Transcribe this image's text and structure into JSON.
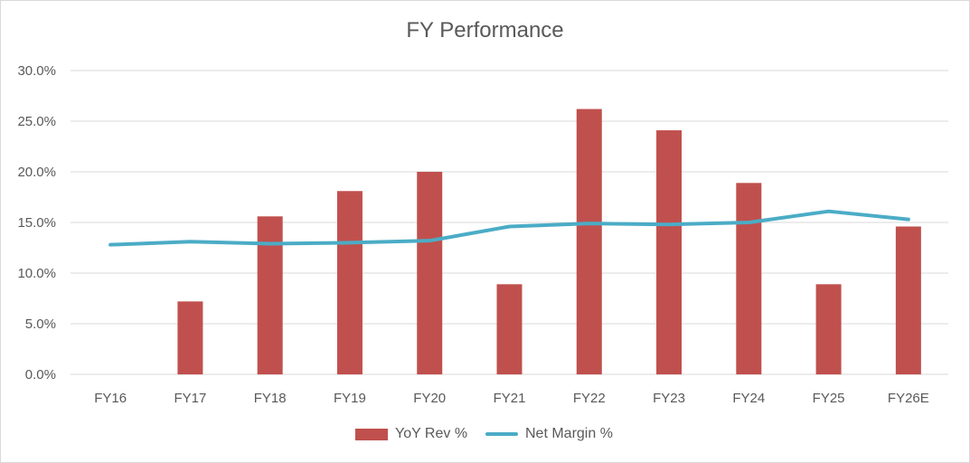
{
  "chart_data": {
    "type": "bar",
    "title": "FY Performance",
    "xlabel": "",
    "ylabel": "",
    "categories": [
      "FY16",
      "FY17",
      "FY18",
      "FY19",
      "FY20",
      "FY21",
      "FY22",
      "FY23",
      "FY24",
      "FY25",
      "FY26E"
    ],
    "ylim": [
      0,
      30
    ],
    "yticks": [
      "0.0%",
      "5.0%",
      "10.0%",
      "15.0%",
      "20.0%",
      "25.0%",
      "30.0%"
    ],
    "grid": true,
    "legend_position": "bottom",
    "series": [
      {
        "name": "YoY Rev %",
        "type": "bar",
        "color": "#c0504d",
        "values": [
          null,
          7.2,
          15.6,
          18.1,
          20.0,
          8.9,
          26.2,
          24.1,
          18.9,
          8.9,
          14.6
        ]
      },
      {
        "name": "Net Margin %",
        "type": "line",
        "color": "#4bacc6",
        "values": [
          12.8,
          13.1,
          12.9,
          13.0,
          13.2,
          14.6,
          14.9,
          14.8,
          15.0,
          16.1,
          15.3
        ]
      }
    ]
  }
}
